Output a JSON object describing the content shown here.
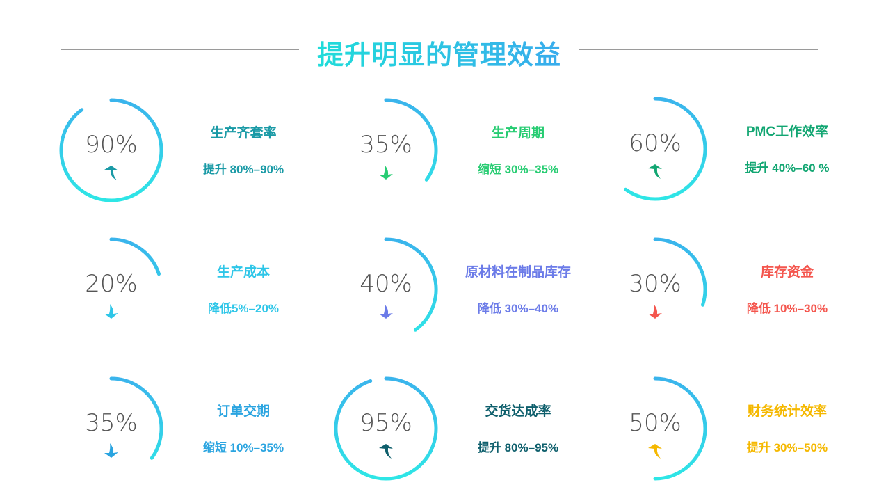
{
  "title": "提升明显的管理效益",
  "arc_gradient": {
    "start": "#3ab4ec",
    "end": "#2ee6e6"
  },
  "items": [
    {
      "percent": 90,
      "percent_label": "90%",
      "label": "生产齐套率",
      "change": "提升 80%–90%",
      "direction": "up",
      "icon": "arrow-up-icon",
      "color": "#1a9aa6"
    },
    {
      "percent": 35,
      "percent_label": "35%",
      "label": "生产周期",
      "change": "缩短 30%–35%",
      "direction": "down",
      "icon": "arrow-down-icon",
      "color": "#27cc72"
    },
    {
      "percent": 60,
      "percent_label": "60%",
      "label": "PMC工作效率",
      "change": "提升 40%–60 %",
      "direction": "up",
      "icon": "arrow-up-icon",
      "color": "#12a672"
    },
    {
      "percent": 20,
      "percent_label": "20%",
      "label": "生产成本",
      "change": "降低5%–20%",
      "direction": "down",
      "icon": "arrow-down-icon",
      "color": "#2ec6e8"
    },
    {
      "percent": 40,
      "percent_label": "40%",
      "label": "原材料在制品库存",
      "change": "降低 30%–40%",
      "direction": "down",
      "icon": "arrow-down-icon",
      "color": "#6b7be8"
    },
    {
      "percent": 30,
      "percent_label": "30%",
      "label": "库存资金",
      "change": "降低 10%–30%",
      "direction": "down",
      "icon": "arrow-down-icon",
      "color": "#f4564e"
    },
    {
      "percent": 35,
      "percent_label": "35%",
      "label": "订单交期",
      "change": "缩短 10%–35%",
      "direction": "down",
      "icon": "arrow-down-icon",
      "color": "#2aa4e0"
    },
    {
      "percent": 95,
      "percent_label": "95%",
      "label": "交货达成率",
      "change": "提升 80%–95%",
      "direction": "up",
      "icon": "arrow-up-icon",
      "color": "#0e5f6c"
    },
    {
      "percent": 50,
      "percent_label": "50%",
      "label": "财务统计效率",
      "change": "提升 30%–50%",
      "direction": "up",
      "icon": "arrow-up-icon",
      "color": "#f5b800"
    }
  ]
}
